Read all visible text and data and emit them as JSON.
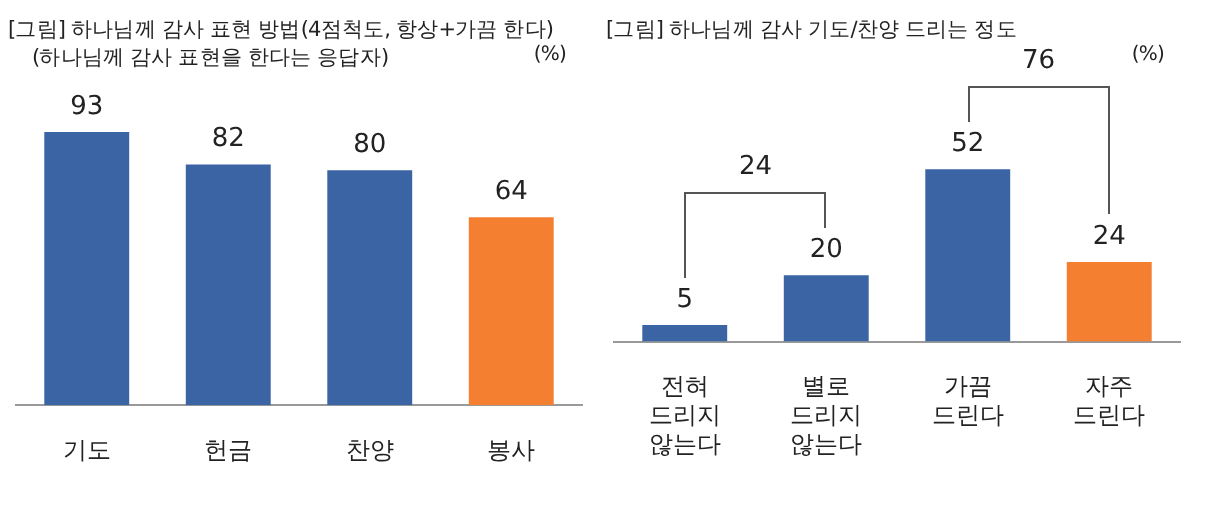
{
  "chart_data": [
    {
      "type": "bar",
      "title": "[그림] 하나님께 감사 표현 방법(4점척도, 항상+가끔 한다)",
      "subtitle": "(하나님께 감사 표현을 한다는 응답자)",
      "categories": [
        "기도",
        "헌금",
        "찬양",
        "봉사"
      ],
      "values": [
        93,
        82,
        80,
        64
      ],
      "colors": [
        "#3a64a3",
        "#3a64a3",
        "#3a64a3",
        "#f47f30"
      ],
      "data_labels": true,
      "annotations": [
        "(%)"
      ]
    },
    {
      "type": "bar",
      "title": "[그림] 하나님께 감사 기도/찬양 드리는 정도",
      "categories": [
        "전혀 드리지 않는다",
        "별로 드리지 않는다",
        "가끔 드린다",
        "자주 드린다"
      ],
      "values": [
        5,
        20,
        52,
        24
      ],
      "colors": [
        "#3a64a3",
        "#3a64a3",
        "#3a64a3",
        "#f47f30"
      ],
      "data_labels": true,
      "annotations": [
        "(%)",
        "24",
        "76"
      ]
    }
  ]
}
